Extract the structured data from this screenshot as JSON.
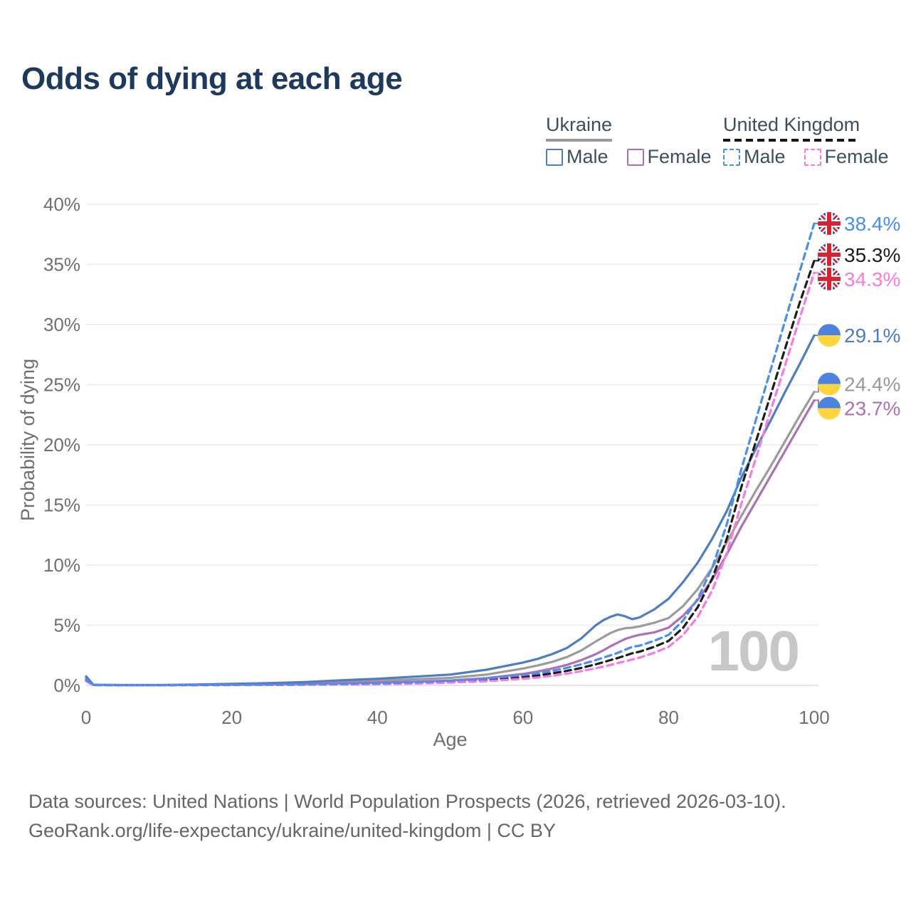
{
  "title": "Odds of dying at each age",
  "legend": {
    "groups": [
      {
        "name": "Ukraine",
        "line_style": "solid",
        "line_color": "#9b9b9b",
        "items": [
          {
            "label": "Male",
            "color": "#4d7ec3",
            "dashed": false
          },
          {
            "label": "Female",
            "color": "#ad6fb5",
            "dashed": false
          }
        ]
      },
      {
        "name": "United Kingdom",
        "line_style": "dashed",
        "line_color": "#161616",
        "items": [
          {
            "label": "Male",
            "color": "#4a8ef5",
            "dashed": true
          },
          {
            "label": "Female",
            "color": "#fa78e2",
            "dashed": true
          }
        ]
      }
    ]
  },
  "chart_data": {
    "type": "line",
    "title": "Odds of dying at each age",
    "xlabel": "Age",
    "ylabel": "Probability of dying",
    "x_ticks": [
      0,
      20,
      40,
      60,
      80,
      100
    ],
    "y_ticks": [
      0,
      5,
      10,
      15,
      20,
      25,
      30,
      35,
      40
    ],
    "y_tick_suffix": "%",
    "xlim": [
      0,
      100
    ],
    "ylim": [
      0,
      40
    ],
    "grid": "horizontal",
    "legend_position": "top-right",
    "watermark": "100",
    "axis_text_color": "#6f6f6f",
    "grid_color": "#ececec",
    "baseline_color": "#dcdcdc",
    "watermark_color": "#c7c7c7",
    "flag_colors": {
      "ua_blue": "#4e82e0",
      "ua_yellow": "#ffd53d",
      "uk_navy": "#253a8c",
      "uk_red": "#d62332",
      "white": "#ffffff"
    },
    "ages": [
      0,
      1,
      5,
      10,
      15,
      20,
      25,
      30,
      35,
      40,
      45,
      50,
      55,
      60,
      62,
      64,
      66,
      68,
      70,
      71,
      72,
      73,
      74,
      75,
      76,
      78,
      80,
      82,
      84,
      86,
      88,
      90,
      92,
      94,
      96,
      98,
      100
    ],
    "series": [
      {
        "name": "Ukraine Total",
        "country": "ua",
        "color": "#9b9b9b",
        "dashed": false,
        "end_label": "24.4%",
        "label_color": "#9a9a9a",
        "end_value": 24.4,
        "values": [
          0.65,
          0.045,
          0.025,
          0.025,
          0.055,
          0.095,
          0.13,
          0.2,
          0.29,
          0.39,
          0.5,
          0.62,
          0.9,
          1.4,
          1.65,
          1.95,
          2.35,
          2.9,
          3.65,
          4.0,
          4.35,
          4.6,
          4.75,
          4.8,
          4.9,
          5.2,
          5.6,
          6.6,
          8.0,
          9.8,
          11.9,
          14.1,
          16.2,
          18.2,
          20.3,
          22.4,
          24.4
        ]
      },
      {
        "name": "Ukraine Female",
        "country": "ua",
        "color": "#ad6fb5",
        "dashed": false,
        "end_label": "23.7%",
        "label_color": "#ad6fb5",
        "end_value": 23.7,
        "values": [
          0.55,
          0.04,
          0.02,
          0.02,
          0.04,
          0.06,
          0.08,
          0.12,
          0.17,
          0.23,
          0.3,
          0.4,
          0.6,
          0.95,
          1.15,
          1.4,
          1.7,
          2.1,
          2.6,
          2.9,
          3.25,
          3.55,
          3.85,
          4.05,
          4.2,
          4.4,
          4.8,
          5.8,
          7.1,
          8.8,
          10.9,
          13.2,
          15.3,
          17.4,
          19.5,
          21.6,
          23.7
        ]
      },
      {
        "name": "Ukraine Male",
        "country": "ua",
        "color": "#4d7ec3",
        "dashed": false,
        "end_label": "29.1%",
        "label_color": "#4d7cc0",
        "end_value": 29.1,
        "values": [
          0.75,
          0.05,
          0.03,
          0.03,
          0.07,
          0.13,
          0.19,
          0.28,
          0.42,
          0.55,
          0.72,
          0.9,
          1.3,
          1.9,
          2.2,
          2.6,
          3.1,
          3.9,
          5.0,
          5.4,
          5.7,
          5.9,
          5.75,
          5.5,
          5.65,
          6.3,
          7.2,
          8.6,
          10.2,
          12.2,
          14.5,
          17.3,
          19.7,
          22.0,
          24.4,
          26.7,
          29.1
        ]
      },
      {
        "name": "United Kingdom Total",
        "country": "uk",
        "color": "#1d1d1d",
        "dashed": true,
        "end_label": "35.3%",
        "label_color": "#1d1d1d",
        "end_value": 35.3,
        "values": [
          0.4,
          0.028,
          0.01,
          0.011,
          0.025,
          0.037,
          0.047,
          0.07,
          0.095,
          0.13,
          0.2,
          0.3,
          0.45,
          0.7,
          0.82,
          1.0,
          1.2,
          1.45,
          1.75,
          1.92,
          2.1,
          2.27,
          2.47,
          2.67,
          2.8,
          3.2,
          3.7,
          4.8,
          6.5,
          8.9,
          12.2,
          16.5,
          20.3,
          24.1,
          28.0,
          31.8,
          35.3
        ]
      },
      {
        "name": "United Kingdom Female",
        "country": "uk",
        "color": "#fa78e2",
        "dashed": true,
        "end_label": "34.3%",
        "label_color": "#fa78e2",
        "end_value": 34.3,
        "values": [
          0.35,
          0.025,
          0.01,
          0.01,
          0.02,
          0.025,
          0.035,
          0.05,
          0.07,
          0.1,
          0.15,
          0.23,
          0.35,
          0.55,
          0.65,
          0.8,
          0.97,
          1.18,
          1.42,
          1.55,
          1.7,
          1.85,
          2.0,
          2.15,
          2.3,
          2.7,
          3.2,
          4.2,
          5.7,
          7.9,
          11.0,
          15.1,
          18.9,
          22.8,
          26.6,
          30.5,
          34.3
        ]
      },
      {
        "name": "United Kingdom Male",
        "country": "uk",
        "color": "#4a8ef5",
        "dashed": true,
        "end_label": "38.4%",
        "label_color": "#4a8ef2",
        "end_value": 38.4,
        "values": [
          0.45,
          0.03,
          0.01,
          0.012,
          0.03,
          0.05,
          0.06,
          0.09,
          0.12,
          0.17,
          0.25,
          0.37,
          0.56,
          0.85,
          1.0,
          1.2,
          1.45,
          1.75,
          2.1,
          2.3,
          2.5,
          2.7,
          2.95,
          3.2,
          3.3,
          3.7,
          4.2,
          5.4,
          7.2,
          9.8,
          13.4,
          18.0,
          22.1,
          26.2,
          30.3,
          34.4,
          38.4
        ]
      }
    ]
  },
  "footer": {
    "line1": "Data sources: United Nations | World Population Prospects (2026, retrieved 2026-03-10).",
    "line2": "GeoRank.org/life-expectancy/ukraine/united-kingdom | CC BY"
  }
}
